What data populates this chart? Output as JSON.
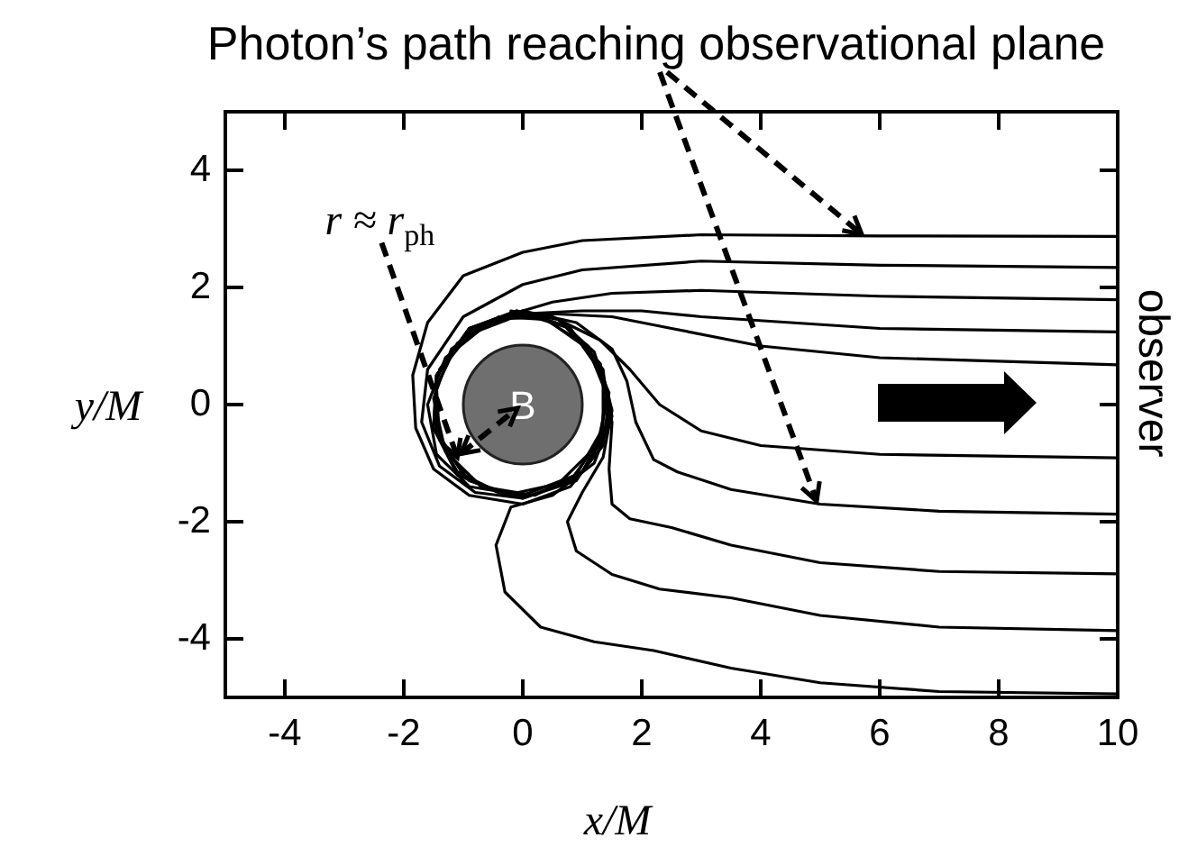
{
  "chart_data": {
    "type": "line",
    "title": "Photon’s path reaching observational plane",
    "xlabel": "x/M",
    "ylabel": "y/M",
    "xlim": [
      -5,
      10
    ],
    "ylim": [
      -5,
      5
    ],
    "xticks": [
      -4,
      -2,
      0,
      2,
      4,
      6,
      8,
      10
    ],
    "yticks": [
      -4,
      -2,
      0,
      2,
      4
    ],
    "marker": "none",
    "line_style": "solid",
    "annotations": [
      {
        "text": "r ≈ r$_{ph}$",
        "x": -1.1,
        "y": -0.9
      },
      "B",
      "observer"
    ],
    "series": [
      {
        "color": "#000000",
        "x": [
          10,
          6,
          3,
          1,
          0,
          -1,
          -1.6,
          -1.85,
          -1.8,
          -1.5,
          -0.9,
          0,
          0.8,
          1.35,
          1.45,
          1.2,
          0.6,
          -0.2
        ],
        "values": [
          2.87,
          2.88,
          2.9,
          2.8,
          2.6,
          2.2,
          1.4,
          0.5,
          -0.4,
          -1.1,
          -1.55,
          -1.7,
          -1.4,
          -0.7,
          0.1,
          0.9,
          1.45,
          1.6
        ]
      },
      {
        "color": "#000000",
        "x": [
          10,
          6,
          3,
          1,
          0,
          -1,
          -1.6,
          -1.7,
          -1.4,
          -0.8,
          0,
          0.8,
          1.3,
          1.4,
          1.1,
          0.4,
          -0.4
        ],
        "values": [
          2.34,
          2.38,
          2.45,
          2.3,
          2.05,
          1.5,
          0.6,
          -0.3,
          -1.05,
          -1.5,
          -1.6,
          -1.3,
          -0.6,
          0.2,
          0.95,
          1.45,
          1.5
        ]
      },
      {
        "color": "#000000",
        "x": [
          10,
          6,
          3,
          1.5,
          0.5,
          -0.5,
          -1.3,
          -1.6,
          -1.45,
          -0.9,
          0,
          0.9,
          1.35,
          1.35,
          0.8,
          0,
          -0.8
        ],
        "values": [
          1.79,
          1.85,
          1.95,
          1.9,
          1.75,
          1.45,
          0.8,
          0,
          -0.85,
          -1.4,
          -1.55,
          -1.2,
          -0.4,
          0.5,
          1.3,
          1.55,
          1.3
        ]
      },
      {
        "color": "#000000",
        "x": [
          10,
          6,
          3,
          2,
          1,
          0,
          -0.9,
          -1.45,
          -1.5,
          -1.1,
          -0.3,
          0.6,
          1.25,
          1.45,
          1.1,
          0.3,
          -0.5
        ],
        "values": [
          1.24,
          1.3,
          1.5,
          1.6,
          1.6,
          1.55,
          1.2,
          0.5,
          -0.4,
          -1.2,
          -1.55,
          -1.35,
          -0.7,
          0.2,
          1,
          1.5,
          1.45
        ]
      },
      {
        "color": "#000000",
        "x": [
          10,
          6,
          4,
          2.5,
          1.5,
          0.5,
          -0.5,
          -1.2,
          -1.5,
          -1.3,
          -0.7,
          0.2,
          1,
          1.45,
          1.35,
          0.8
        ],
        "values": [
          0.68,
          0.8,
          1,
          1.3,
          1.5,
          1.55,
          1.45,
          0.95,
          0.1,
          -0.8,
          -1.4,
          -1.55,
          -1.15,
          -0.3,
          0.6,
          1.25
        ]
      },
      {
        "color": "#000000",
        "x": [
          10,
          6,
          4,
          3,
          2.3,
          1.8,
          1.3,
          0.5,
          -0.4,
          -1.1,
          -1.45,
          -1.4,
          -0.9,
          0,
          0.9,
          1.4
        ],
        "values": [
          -0.91,
          -0.85,
          -0.7,
          -0.45,
          0,
          0.6,
          1.1,
          1.5,
          1.5,
          1.05,
          0.3,
          -0.6,
          -1.3,
          -1.6,
          -1.3,
          -0.5
        ]
      },
      {
        "color": "#000000",
        "x": [
          10,
          7,
          5,
          3.5,
          2.6,
          2.2,
          1.9,
          1.75,
          1.5,
          0.9,
          0,
          -0.9,
          -1.45,
          -1.5,
          -1.1,
          -0.3
        ],
        "values": [
          -1.87,
          -1.82,
          -1.7,
          -1.45,
          -1.15,
          -0.94,
          -0.3,
          0.4,
          0.95,
          1.4,
          1.6,
          1.25,
          0.5,
          -0.4,
          -1.15,
          -1.55
        ]
      },
      {
        "color": "#000000",
        "x": [
          10,
          7,
          5,
          3.5,
          2.5,
          1.8,
          1.5,
          1.45,
          1.5,
          1.3,
          0.8,
          0,
          -0.9,
          -1.45,
          -1.45,
          -1
        ],
        "values": [
          -2.89,
          -2.85,
          -2.7,
          -2.4,
          -2.1,
          -1.95,
          -1.7,
          -1.1,
          -0.3,
          0.6,
          1.3,
          1.6,
          1.3,
          0.5,
          -0.45,
          -1.2
        ]
      },
      {
        "color": "#000000",
        "x": [
          10,
          7,
          5,
          3.5,
          2.3,
          1.5,
          0.9,
          0.75,
          1,
          1.35,
          1.5,
          1.3,
          0.7,
          -0.1,
          -0.9,
          -1.4
        ],
        "values": [
          -3.86,
          -3.8,
          -3.6,
          -3.3,
          -3.15,
          -2.9,
          -2.5,
          -2,
          -1.5,
          -0.9,
          -0.1,
          0.7,
          1.35,
          1.6,
          1.3,
          0.6
        ]
      },
      {
        "color": "#000000",
        "x": [
          10,
          7,
          5,
          3.5,
          2.2,
          1.2,
          0.3,
          -0.3,
          -0.45,
          -0.2,
          0.5,
          1.2,
          1.5,
          1.3,
          0.7,
          -0.1,
          -0.9
        ],
        "values": [
          -4.94,
          -4.9,
          -4.75,
          -4.5,
          -4.2,
          -4.05,
          -3.8,
          -3.2,
          -2.4,
          -1.75,
          -1.55,
          -1,
          -0.2,
          0.7,
          1.35,
          1.6,
          1.3
        ]
      }
    ]
  }
}
